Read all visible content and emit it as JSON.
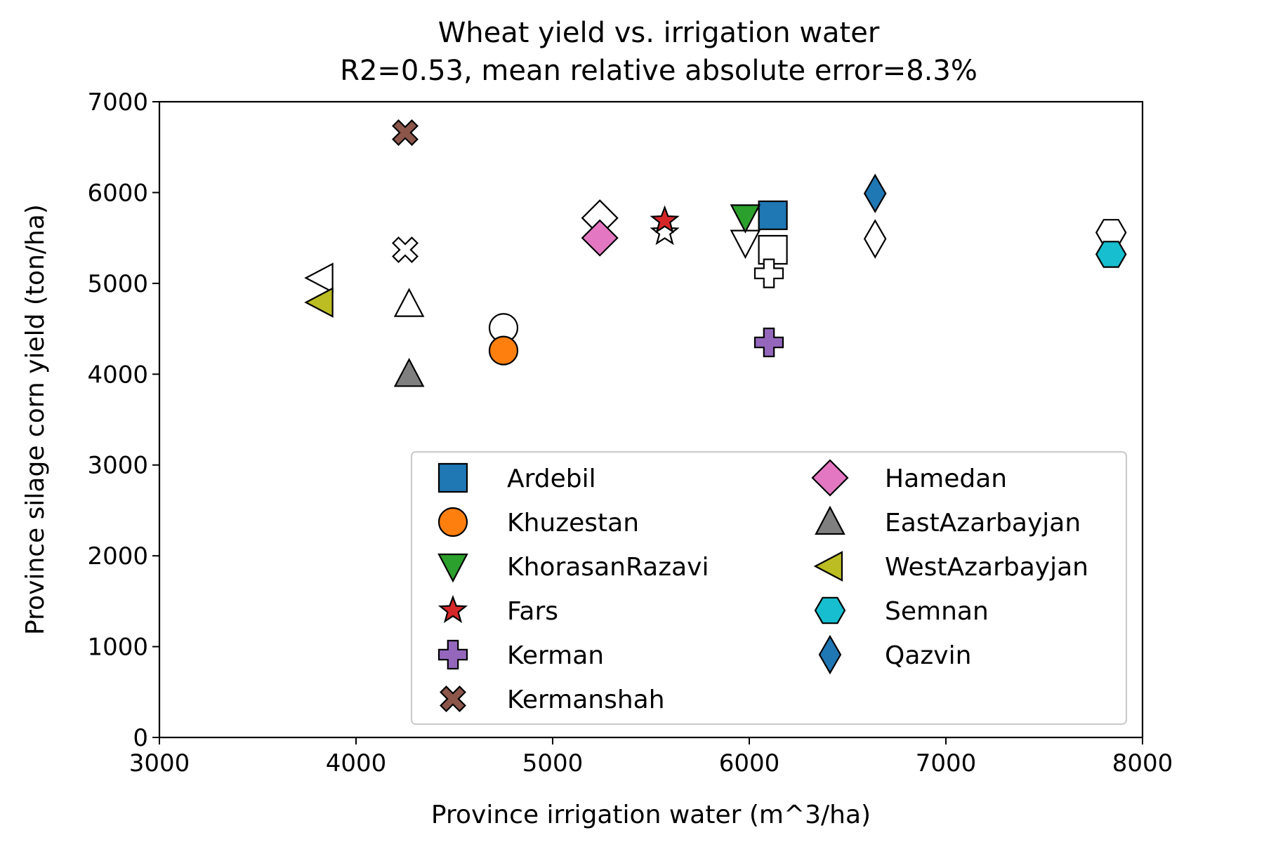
{
  "chart_data": {
    "type": "scatter",
    "title": "Wheat yield vs. irrigation water",
    "subtitle": "R2=0.53, mean relative absolute error=8.3%",
    "xlabel": "Province irrigation water (m^3/ha)",
    "ylabel": "Province silage corn yield (ton/ha)",
    "xlim": [
      3000,
      8000
    ],
    "ylim": [
      0,
      7000
    ],
    "xticks": [
      3000,
      4000,
      5000,
      6000,
      7000,
      8000
    ],
    "yticks": [
      0,
      1000,
      2000,
      3000,
      4000,
      5000,
      6000,
      7000
    ],
    "grid": false,
    "legend_position": "lower-right",
    "legend_columns": 2,
    "series": [
      {
        "name": "Ardebil",
        "marker": "square",
        "color": "#1f77b4",
        "x": 6120,
        "y": 5750,
        "predicted_y": 5370
      },
      {
        "name": "Khuzestan",
        "marker": "circle",
        "color": "#ff7f0e",
        "x": 4750,
        "y": 4260,
        "predicted_y": 4510
      },
      {
        "name": "KhorasanRazavi",
        "marker": "triangle-down",
        "color": "#2ca02c",
        "x": 5980,
        "y": 5730,
        "predicted_y": 5450
      },
      {
        "name": "Fars",
        "marker": "star",
        "color": "#d62728",
        "x": 5570,
        "y": 5690,
        "predicted_y": 5560
      },
      {
        "name": "Kerman",
        "marker": "plus",
        "color": "#9467bd",
        "x": 6100,
        "y": 4350,
        "predicted_y": 5110
      },
      {
        "name": "Kermanshah",
        "marker": "x",
        "color": "#8c564b",
        "x": 4250,
        "y": 6660,
        "predicted_y": 5370
      },
      {
        "name": "Hamedan",
        "marker": "diamond",
        "color": "#e377c2",
        "x": 5240,
        "y": 5500,
        "predicted_y": 5720
      },
      {
        "name": "EastAzarbayjan",
        "marker": "triangle-up",
        "color": "#7f7f7f",
        "x": 4270,
        "y": 4000,
        "predicted_y": 4770
      },
      {
        "name": "WestAzarbayjan",
        "marker": "triangle-left",
        "color": "#bcbd22",
        "x": 3820,
        "y": 4790,
        "predicted_y": 5060
      },
      {
        "name": "Semnan",
        "marker": "hexagon",
        "color": "#17becf",
        "x": 7840,
        "y": 5320,
        "predicted_y": 5560
      },
      {
        "name": "Qazvin",
        "marker": "thin-diamond",
        "color": "#1f77b4",
        "x": 6640,
        "y": 5990,
        "predicted_y": 5490
      }
    ]
  }
}
